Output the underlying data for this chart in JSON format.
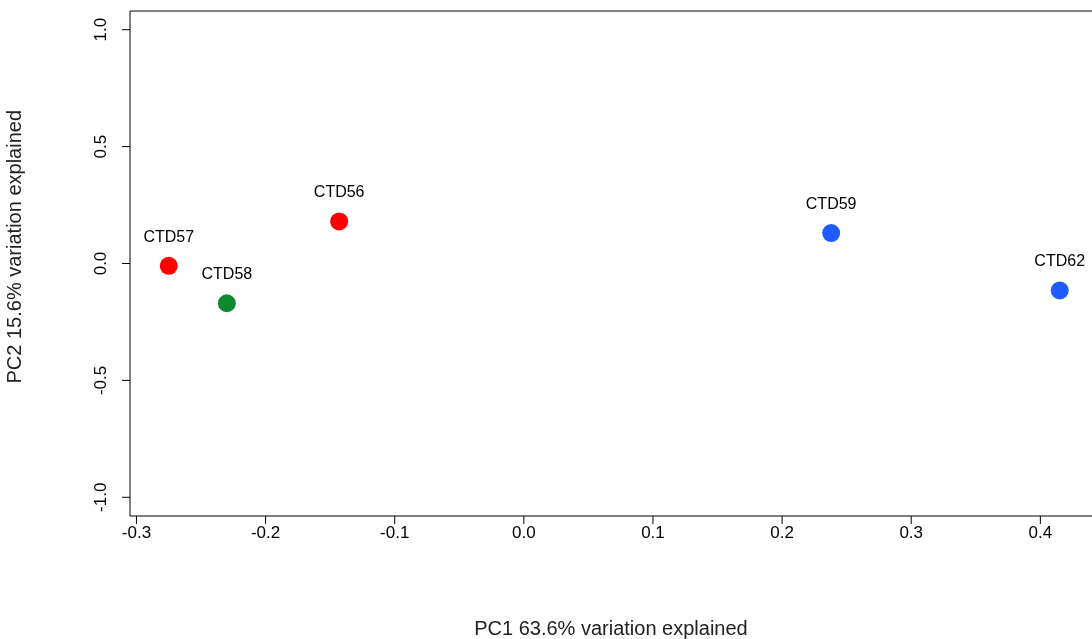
{
  "chart_data": {
    "type": "scatter",
    "xlabel": "PC1 63.6% variation explained",
    "ylabel": "PC2 15.6% variation explained",
    "x": [
      -0.275,
      -0.23,
      -0.143,
      0.238,
      0.415
    ],
    "values": [
      -0.01,
      -0.17,
      0.18,
      0.13,
      -0.115
    ],
    "colors": [
      "#ff0000",
      "#0e8a2e",
      "#ff0000",
      "#1f5cff",
      "#1f5cff"
    ],
    "annotations": [
      {
        "text": "CTD57",
        "x": -0.275,
        "y": -0.01
      },
      {
        "text": "CTD58",
        "x": -0.23,
        "y": -0.17
      },
      {
        "text": "CTD56",
        "x": -0.143,
        "y": 0.18
      },
      {
        "text": "CTD59",
        "x": 0.238,
        "y": 0.13
      },
      {
        "text": "CTD62",
        "x": 0.415,
        "y": -0.115
      }
    ],
    "xlim": [
      -0.305,
      0.44
    ],
    "ylim": [
      -1.08,
      1.08
    ],
    "xticks": [
      -0.3,
      -0.2,
      -0.1,
      {
        "value": 0,
        "label": "0.0"
      },
      0.1,
      0.2,
      0.3,
      0.4
    ],
    "yticks": [
      {
        "value": -1,
        "label": "-1.0"
      },
      -0.5,
      {
        "value": 0,
        "label": "0.0"
      },
      0.5,
      {
        "value": 1,
        "label": "1.0"
      }
    ],
    "marker": "circle",
    "grid": false,
    "legend": false
  }
}
